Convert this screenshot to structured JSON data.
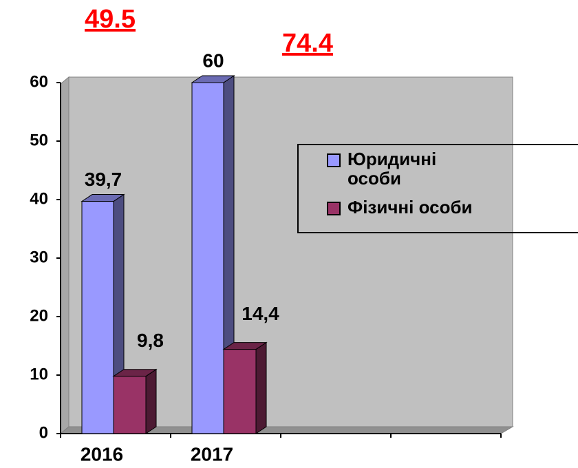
{
  "chart_data": {
    "type": "bar3d",
    "annotations": [
      "49.5",
      "74.4"
    ],
    "categories": [
      "2016",
      "2017",
      null,
      null
    ],
    "series": [
      {
        "name": "Юридичні особи",
        "color": "#9999ff",
        "values": [
          39.7,
          60,
          null,
          null
        ],
        "value_labels": [
          "39,7",
          "60",
          null,
          null
        ]
      },
      {
        "name": "Фізичні особи",
        "color": "#993366",
        "values": [
          9.8,
          14.4,
          null,
          null
        ],
        "value_labels": [
          "9,8",
          "14,4",
          null,
          null
        ]
      }
    ],
    "ylim": [
      0,
      60
    ],
    "yticks": [
      0,
      10,
      20,
      30,
      40,
      50,
      60
    ],
    "legend": "right"
  }
}
